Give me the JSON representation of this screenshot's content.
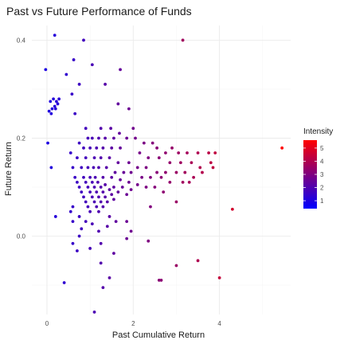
{
  "chart_data": {
    "type": "scatter",
    "title": "Past vs Future Performance of Funds",
    "xlabel": "Past Cumulative Return",
    "ylabel": "Future Return",
    "xlim": [
      -0.35,
      5.65
    ],
    "ylim": [
      -0.16,
      0.43
    ],
    "x_ticks": [
      0,
      2,
      4
    ],
    "x_tick_labels": [
      "0",
      "2",
      "4"
    ],
    "y_ticks": [
      0.0,
      0.2,
      0.4
    ],
    "y_tick_labels": [
      "0.0",
      "0.2",
      "0.4"
    ],
    "grid": true,
    "color_variable": "Intensity",
    "color_scale": {
      "low": "#0000ff",
      "high": "#ff0000",
      "min": 0.4,
      "max": 5.6
    },
    "legend": {
      "title": "Intensity",
      "ticks": [
        1,
        2,
        3,
        4,
        5
      ],
      "labels": [
        "1",
        "2",
        "3",
        "4",
        "5"
      ],
      "position": "right"
    },
    "points": [
      [
        -0.03,
        0.34
      ],
      [
        0.18,
        0.41
      ],
      [
        0.85,
        0.4
      ],
      [
        0.62,
        0.36
      ],
      [
        1.05,
        0.35
      ],
      [
        0.45,
        0.33
      ],
      [
        1.7,
        0.34
      ],
      [
        3.15,
        0.4
      ],
      [
        0.75,
        0.31
      ],
      [
        1.35,
        0.31
      ],
      [
        0.58,
        0.29
      ],
      [
        0.15,
        0.28
      ],
      [
        0.28,
        0.28
      ],
      [
        0.22,
        0.275
      ],
      [
        0.08,
        0.275
      ],
      [
        0.18,
        0.265
      ],
      [
        0.12,
        0.26
      ],
      [
        0.05,
        0.255
      ],
      [
        0.2,
        0.26
      ],
      [
        0.25,
        0.27
      ],
      [
        0.1,
        0.25
      ],
      [
        0.65,
        0.25
      ],
      [
        1.65,
        0.27
      ],
      [
        1.9,
        0.26
      ],
      [
        0.02,
        0.19
      ],
      [
        0.9,
        0.22
      ],
      [
        1.25,
        0.22
      ],
      [
        1.48,
        0.22
      ],
      [
        1.68,
        0.21
      ],
      [
        2.0,
        0.22
      ],
      [
        0.95,
        0.2
      ],
      [
        1.05,
        0.2
      ],
      [
        1.2,
        0.2
      ],
      [
        1.35,
        0.2
      ],
      [
        1.55,
        0.2
      ],
      [
        1.85,
        0.2
      ],
      [
        2.05,
        0.2
      ],
      [
        2.25,
        0.19
      ],
      [
        2.45,
        0.19
      ],
      [
        2.55,
        0.18
      ],
      [
        2.75,
        0.17
      ],
      [
        2.9,
        0.18
      ],
      [
        3.05,
        0.17
      ],
      [
        3.25,
        0.17
      ],
      [
        3.5,
        0.17
      ],
      [
        3.75,
        0.17
      ],
      [
        3.9,
        0.17
      ],
      [
        5.45,
        0.18
      ],
      [
        0.75,
        0.19
      ],
      [
        0.85,
        0.18
      ],
      [
        1.0,
        0.18
      ],
      [
        1.15,
        0.18
      ],
      [
        1.3,
        0.18
      ],
      [
        1.5,
        0.18
      ],
      [
        1.7,
        0.18
      ],
      [
        2.15,
        0.17
      ],
      [
        2.35,
        0.16
      ],
      [
        2.6,
        0.16
      ],
      [
        2.85,
        0.15
      ],
      [
        3.1,
        0.15
      ],
      [
        3.35,
        0.15
      ],
      [
        3.55,
        0.14
      ],
      [
        3.8,
        0.15
      ],
      [
        3.85,
        0.14
      ],
      [
        0.55,
        0.17
      ],
      [
        0.7,
        0.16
      ],
      [
        0.9,
        0.16
      ],
      [
        1.1,
        0.16
      ],
      [
        1.25,
        0.16
      ],
      [
        1.45,
        0.16
      ],
      [
        1.65,
        0.15
      ],
      [
        1.9,
        0.15
      ],
      [
        2.1,
        0.14
      ],
      [
        2.3,
        0.14
      ],
      [
        2.55,
        0.13
      ],
      [
        2.75,
        0.13
      ],
      [
        3.0,
        0.13
      ],
      [
        3.2,
        0.13
      ],
      [
        3.4,
        0.12
      ],
      [
        3.6,
        0.13
      ],
      [
        0.1,
        0.14
      ],
      [
        0.6,
        0.14
      ],
      [
        0.8,
        0.14
      ],
      [
        0.95,
        0.14
      ],
      [
        1.08,
        0.14
      ],
      [
        1.2,
        0.14
      ],
      [
        1.38,
        0.14
      ],
      [
        1.58,
        0.13
      ],
      [
        1.78,
        0.13
      ],
      [
        1.95,
        0.13
      ],
      [
        2.2,
        0.12
      ],
      [
        2.4,
        0.12
      ],
      [
        2.65,
        0.12
      ],
      [
        2.85,
        0.11
      ],
      [
        3.15,
        0.11
      ],
      [
        3.3,
        0.11
      ],
      [
        0.65,
        0.12
      ],
      [
        0.85,
        0.12
      ],
      [
        1.0,
        0.12
      ],
      [
        1.12,
        0.12
      ],
      [
        1.3,
        0.12
      ],
      [
        1.5,
        0.12
      ],
      [
        1.7,
        0.115
      ],
      [
        1.9,
        0.11
      ],
      [
        2.1,
        0.105
      ],
      [
        2.3,
        0.1
      ],
      [
        2.5,
        0.1
      ],
      [
        2.7,
        0.09
      ],
      [
        0.7,
        0.11
      ],
      [
        0.9,
        0.11
      ],
      [
        1.05,
        0.11
      ],
      [
        1.18,
        0.11
      ],
      [
        1.35,
        0.105
      ],
      [
        1.55,
        0.1
      ],
      [
        1.75,
        0.1
      ],
      [
        1.95,
        0.095
      ],
      [
        0.75,
        0.1
      ],
      [
        0.95,
        0.1
      ],
      [
        1.1,
        0.1
      ],
      [
        1.25,
        0.1
      ],
      [
        1.45,
        0.095
      ],
      [
        1.65,
        0.09
      ],
      [
        1.85,
        0.085
      ],
      [
        0.8,
        0.09
      ],
      [
        1.0,
        0.09
      ],
      [
        1.15,
        0.09
      ],
      [
        1.3,
        0.09
      ],
      [
        1.5,
        0.085
      ],
      [
        0.85,
        0.08
      ],
      [
        1.05,
        0.08
      ],
      [
        1.2,
        0.08
      ],
      [
        1.35,
        0.08
      ],
      [
        1.55,
        0.075
      ],
      [
        0.9,
        0.07
      ],
      [
        1.1,
        0.07
      ],
      [
        1.25,
        0.07
      ],
      [
        1.4,
        0.07
      ],
      [
        0.95,
        0.06
      ],
      [
        1.15,
        0.06
      ],
      [
        1.3,
        0.06
      ],
      [
        1.0,
        0.05
      ],
      [
        1.2,
        0.05
      ],
      [
        0.2,
        0.04
      ],
      [
        0.55,
        0.05
      ],
      [
        0.6,
        0.06
      ],
      [
        0.6,
        0.03
      ],
      [
        0.75,
        0.04
      ],
      [
        1.45,
        0.04
      ],
      [
        2.4,
        0.06
      ],
      [
        3.0,
        0.07
      ],
      [
        4.3,
        0.055
      ],
      [
        0.9,
        0.03
      ],
      [
        1.05,
        0.025
      ],
      [
        1.6,
        0.03
      ],
      [
        1.85,
        0.03
      ],
      [
        0.8,
        0.015
      ],
      [
        1.2,
        0.01
      ],
      [
        1.4,
        0.02
      ],
      [
        1.95,
        0.01
      ],
      [
        0.75,
        0.0
      ],
      [
        1.85,
        -0.005
      ],
      [
        0.6,
        -0.015
      ],
      [
        1.25,
        -0.015
      ],
      [
        1.0,
        -0.025
      ],
      [
        1.55,
        -0.035
      ],
      [
        2.35,
        -0.01
      ],
      [
        3.0,
        -0.06
      ],
      [
        0.7,
        -0.03
      ],
      [
        3.5,
        -0.05
      ],
      [
        1.25,
        -0.055
      ],
      [
        0.4,
        -0.095
      ],
      [
        1.45,
        -0.085
      ],
      [
        2.6,
        -0.09
      ],
      [
        2.65,
        -0.09
      ],
      [
        1.3,
        -0.105
      ],
      [
        1.1,
        -0.155
      ],
      [
        4.0,
        -0.085
      ]
    ]
  }
}
